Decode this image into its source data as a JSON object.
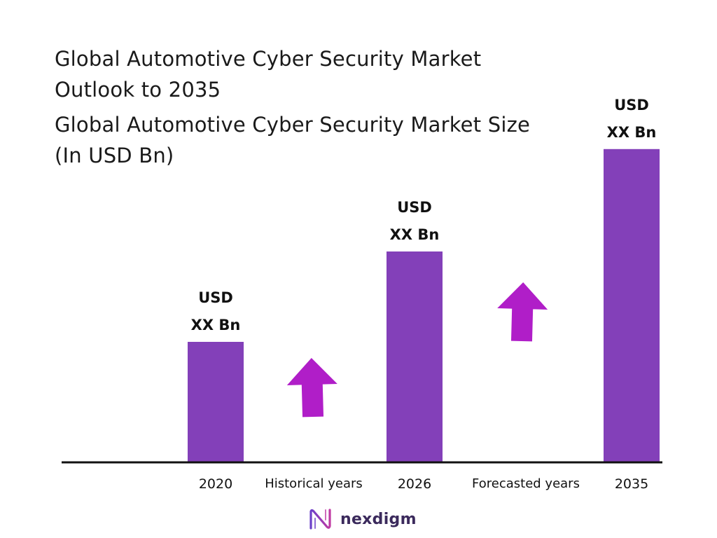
{
  "title": {
    "line1": "Global Automotive Cyber Security Market",
    "line2": "Outlook to 2035"
  },
  "subtitle": {
    "line1": "Global Automotive Cyber Security Market Size",
    "line2": "(In USD Bn)"
  },
  "chart_data": {
    "type": "bar",
    "categories": [
      "2020",
      "2026",
      "2035"
    ],
    "values": [
      1.0,
      1.75,
      2.6
    ],
    "value_labels": [
      [
        "USD",
        "XX Bn"
      ],
      [
        "USD",
        "XX Bn"
      ],
      [
        "USD",
        "XX Bn"
      ]
    ],
    "period_labels": [
      "Historical years",
      "Forecasted years"
    ],
    "bar_color": "#8340B9",
    "arrow_color": "#B01EC8",
    "grid": false,
    "legend": "none"
  },
  "logo": {
    "text": "nexdigm",
    "icon": "nexdigm-logo-icon"
  }
}
